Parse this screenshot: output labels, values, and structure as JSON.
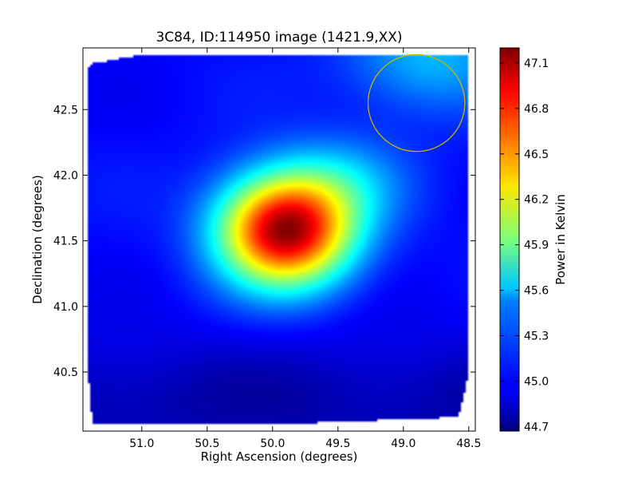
{
  "chart_data": {
    "type": "heatmap",
    "title": "3C84, ID:114950 image (1421.9,XX)",
    "xlabel": "Right Ascension (degrees)",
    "ylabel": "Declination (degrees)",
    "colorbar_label": "Power in Kelvin",
    "x_inverted": true,
    "xlim": [
      51.45,
      48.45
    ],
    "ylim": [
      40.05,
      42.97
    ],
    "x_ticks": [
      {
        "value": 51.0,
        "label": "51.0"
      },
      {
        "value": 50.5,
        "label": "50.5"
      },
      {
        "value": 50.0,
        "label": "50.0"
      },
      {
        "value": 49.5,
        "label": "49.5"
      },
      {
        "value": 49.0,
        "label": "49.0"
      },
      {
        "value": 48.5,
        "label": "48.5"
      }
    ],
    "y_ticks": [
      {
        "value": 40.5,
        "label": "40.5"
      },
      {
        "value": 41.0,
        "label": "41.0"
      },
      {
        "value": 41.5,
        "label": "41.5"
      },
      {
        "value": 42.0,
        "label": "42.0"
      },
      {
        "value": 42.5,
        "label": "42.5"
      }
    ],
    "color_range": [
      44.67,
      47.2
    ],
    "colorbar_ticks": [
      {
        "value": 44.7,
        "label": "44.7"
      },
      {
        "value": 45.0,
        "label": "45.0"
      },
      {
        "value": 45.3,
        "label": "45.3"
      },
      {
        "value": 45.6,
        "label": "45.6"
      },
      {
        "value": 45.9,
        "label": "45.9"
      },
      {
        "value": 46.2,
        "label": "46.2"
      },
      {
        "value": 46.5,
        "label": "46.5"
      },
      {
        "value": 46.8,
        "label": "46.8"
      },
      {
        "value": 47.1,
        "label": "47.1"
      }
    ],
    "colormap": "jet",
    "background_level": 45.0,
    "peak": {
      "ra": 49.9,
      "dec": 41.58,
      "value": 47.15
    },
    "beam_circle": {
      "ra": 48.9,
      "dec": 42.55,
      "radius_deg": 0.37,
      "color": "#c8b400"
    },
    "grid": false
  }
}
